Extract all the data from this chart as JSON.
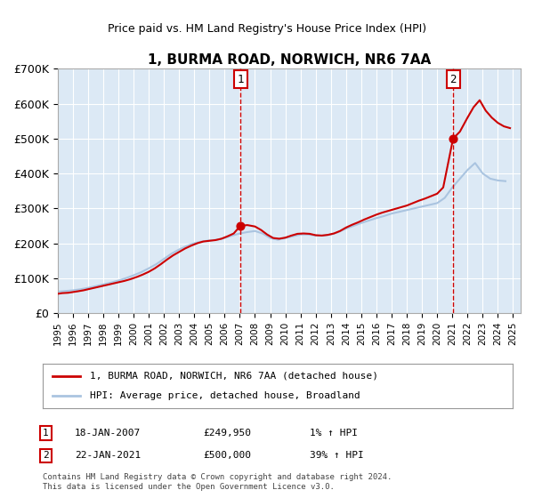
{
  "title": "1, BURMA ROAD, NORWICH, NR6 7AA",
  "subtitle": "Price paid vs. HM Land Registry's House Price Index (HPI)",
  "xlabel": "",
  "ylabel": "",
  "ylim": [
    0,
    700000
  ],
  "yticks": [
    0,
    100000,
    200000,
    300000,
    400000,
    500000,
    600000,
    700000
  ],
  "ytick_labels": [
    "£0",
    "£100K",
    "£200K",
    "£300K",
    "£400K",
    "£500K",
    "£600K",
    "£700K"
  ],
  "xmin": 1995.0,
  "xmax": 2025.5,
  "bg_color": "#dce9f5",
  "plot_bg": "#dce9f5",
  "hpi_color": "#aac4e0",
  "price_color": "#cc0000",
  "legend_label_price": "1, BURMA ROAD, NORWICH, NR6 7AA (detached house)",
  "legend_label_hpi": "HPI: Average price, detached house, Broadland",
  "footnote": "Contains HM Land Registry data © Crown copyright and database right 2024.\nThis data is licensed under the Open Government Licence v3.0.",
  "marker1_x": 2007.05,
  "marker1_y": 249950,
  "marker1_label": "1",
  "marker1_date": "18-JAN-2007",
  "marker1_price": "£249,950",
  "marker1_hpi": "1% ↑ HPI",
  "marker2_x": 2021.05,
  "marker2_y": 500000,
  "marker2_label": "2",
  "marker2_date": "22-JAN-2021",
  "marker2_price": "£500,000",
  "marker2_hpi": "39% ↑ HPI",
  "hpi_data_x": [
    1995.0,
    1995.5,
    1996.0,
    1996.5,
    1997.0,
    1997.5,
    1998.0,
    1998.5,
    1999.0,
    1999.5,
    2000.0,
    2000.5,
    2001.0,
    2001.5,
    2002.0,
    2002.5,
    2003.0,
    2003.5,
    2004.0,
    2004.5,
    2005.0,
    2005.5,
    2006.0,
    2006.5,
    2007.0,
    2007.5,
    2008.0,
    2008.5,
    2009.0,
    2009.5,
    2010.0,
    2010.5,
    2011.0,
    2011.5,
    2012.0,
    2012.5,
    2013.0,
    2013.5,
    2014.0,
    2014.5,
    2015.0,
    2015.5,
    2016.0,
    2016.5,
    2017.0,
    2017.5,
    2018.0,
    2018.5,
    2019.0,
    2019.5,
    2020.0,
    2020.5,
    2021.0,
    2021.5,
    2022.0,
    2022.5,
    2023.0,
    2023.5,
    2024.0,
    2024.5
  ],
  "hpi_data_y": [
    61000,
    63000,
    65000,
    68000,
    72000,
    77000,
    82000,
    87000,
    93000,
    100000,
    108000,
    117000,
    128000,
    140000,
    155000,
    170000,
    182000,
    192000,
    200000,
    205000,
    208000,
    210000,
    215000,
    222000,
    228000,
    232000,
    235000,
    228000,
    215000,
    210000,
    215000,
    220000,
    225000,
    225000,
    222000,
    222000,
    225000,
    232000,
    242000,
    250000,
    258000,
    265000,
    272000,
    278000,
    285000,
    290000,
    295000,
    300000,
    305000,
    310000,
    315000,
    330000,
    360000,
    385000,
    410000,
    430000,
    400000,
    385000,
    380000,
    378000
  ],
  "price_data_x": [
    1995.0,
    1995.3,
    1995.7,
    1996.0,
    1996.3,
    1996.7,
    1997.0,
    1997.4,
    1997.8,
    1998.2,
    1998.6,
    1999.0,
    1999.4,
    1999.8,
    2000.2,
    2000.6,
    2001.0,
    2001.4,
    2001.8,
    2002.2,
    2002.6,
    2003.0,
    2003.4,
    2003.8,
    2004.2,
    2004.6,
    2005.0,
    2005.4,
    2005.8,
    2006.2,
    2006.6,
    2007.0,
    2007.05,
    2007.5,
    2008.0,
    2008.4,
    2008.8,
    2009.2,
    2009.6,
    2010.0,
    2010.4,
    2010.8,
    2011.2,
    2011.6,
    2012.0,
    2012.4,
    2012.8,
    2013.2,
    2013.6,
    2014.0,
    2014.4,
    2014.8,
    2015.2,
    2015.6,
    2016.0,
    2016.4,
    2016.8,
    2017.2,
    2017.6,
    2018.0,
    2018.4,
    2018.8,
    2019.2,
    2019.6,
    2020.0,
    2020.4,
    2021.05,
    2021.5,
    2022.0,
    2022.4,
    2022.8,
    2023.2,
    2023.6,
    2024.0,
    2024.4,
    2024.8
  ],
  "price_data_y": [
    55000,
    57000,
    58000,
    60000,
    62000,
    65000,
    68000,
    72000,
    76000,
    80000,
    84000,
    88000,
    92000,
    97000,
    103000,
    110000,
    118000,
    128000,
    140000,
    153000,
    165000,
    175000,
    185000,
    193000,
    200000,
    205000,
    207000,
    209000,
    213000,
    220000,
    228000,
    248000,
    249950,
    252000,
    248000,
    238000,
    225000,
    215000,
    213000,
    216000,
    222000,
    227000,
    228000,
    227000,
    223000,
    222000,
    224000,
    228000,
    235000,
    245000,
    253000,
    260000,
    268000,
    275000,
    282000,
    288000,
    293000,
    298000,
    303000,
    308000,
    315000,
    322000,
    328000,
    335000,
    342000,
    360000,
    500000,
    520000,
    560000,
    590000,
    610000,
    580000,
    560000,
    545000,
    535000,
    530000
  ]
}
